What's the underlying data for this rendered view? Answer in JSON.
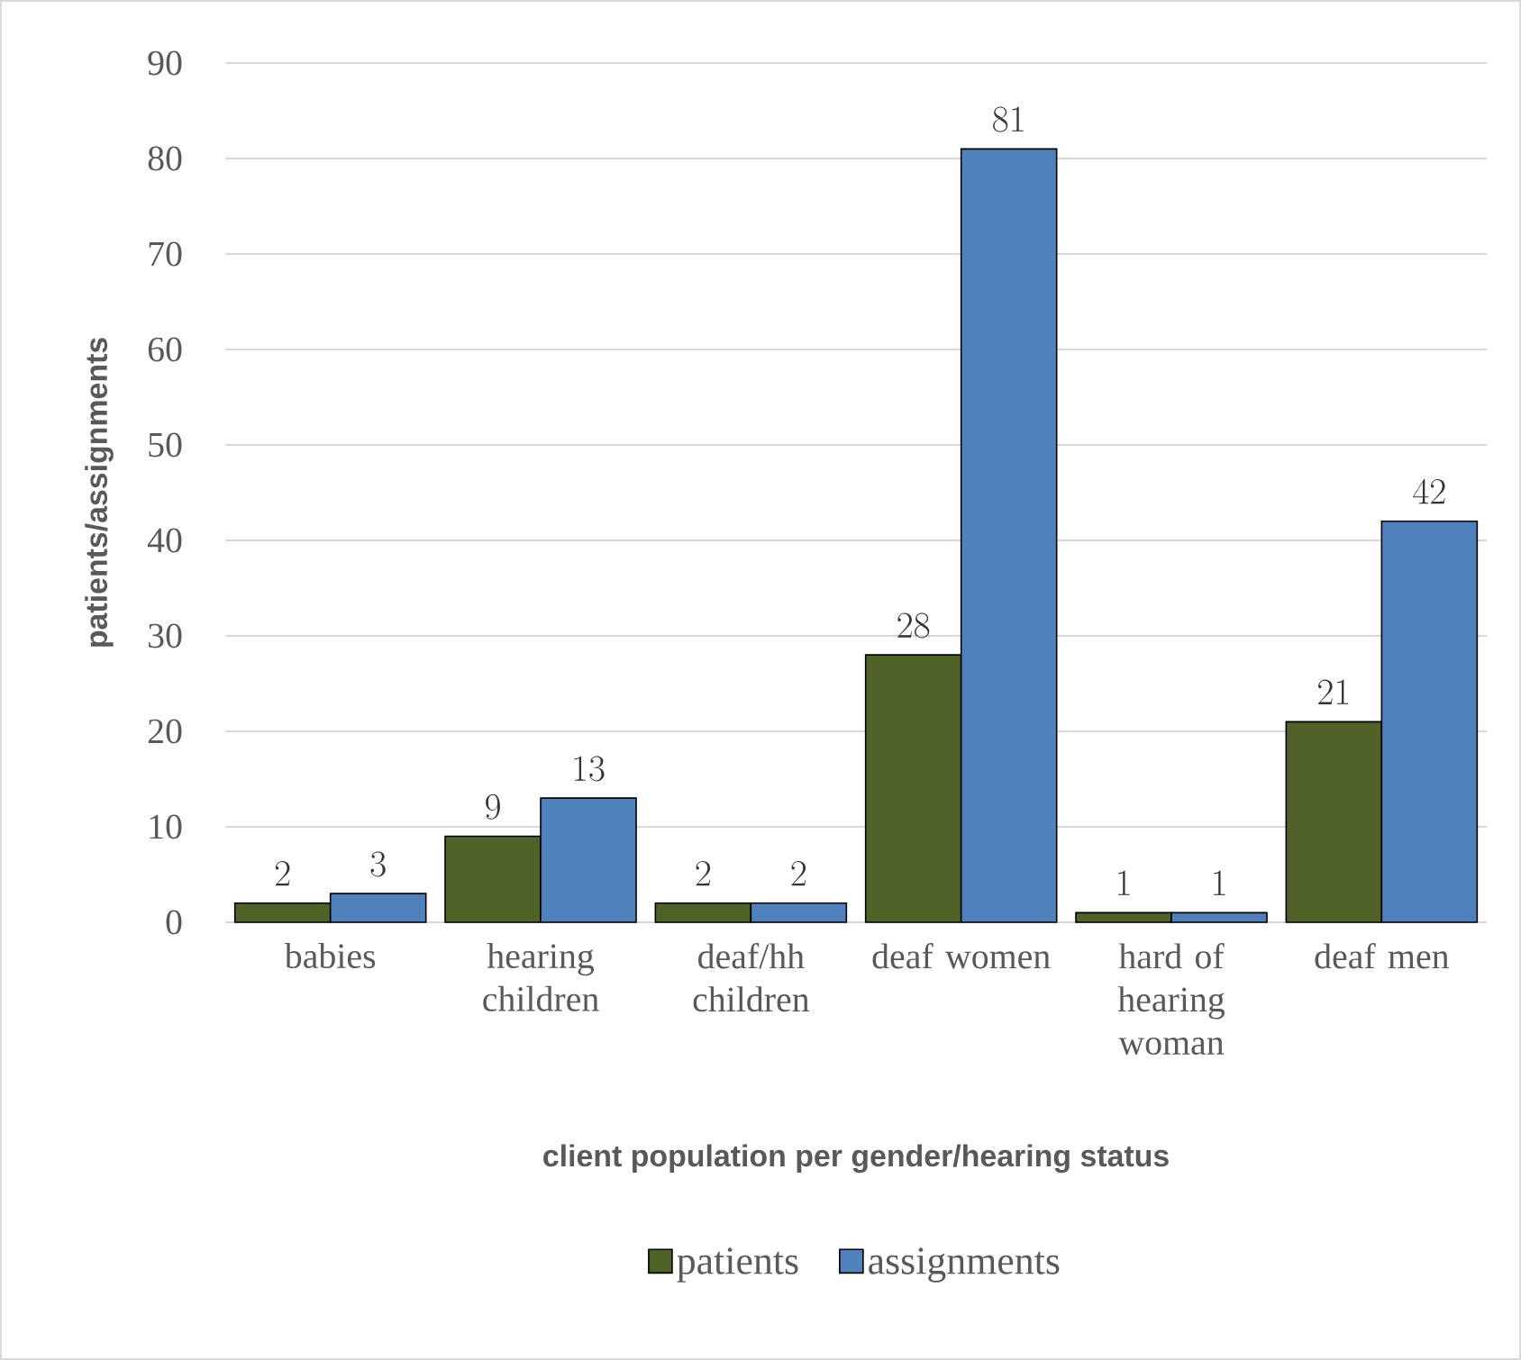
{
  "chart_data": {
    "type": "bar",
    "xlabel": "client population per gender/hearing status",
    "ylabel": "patients/assignments",
    "categories": [
      "babies",
      "hearing children",
      "deaf/hh children",
      "deaf women",
      "hard of hearing woman",
      "deaf men"
    ],
    "series": [
      {
        "name": "patients",
        "color": "#4f6228",
        "values": [
          2,
          9,
          2,
          28,
          1,
          21
        ]
      },
      {
        "name": "assignments",
        "color": "#4f81bd",
        "values": [
          3,
          13,
          2,
          81,
          1,
          42
        ]
      }
    ],
    "ylim": [
      0,
      90
    ],
    "yticks": [
      0,
      10,
      20,
      30,
      40,
      50,
      60,
      70,
      80,
      90
    ],
    "grid": "y",
    "legend": "bottom",
    "data_labels": true
  }
}
